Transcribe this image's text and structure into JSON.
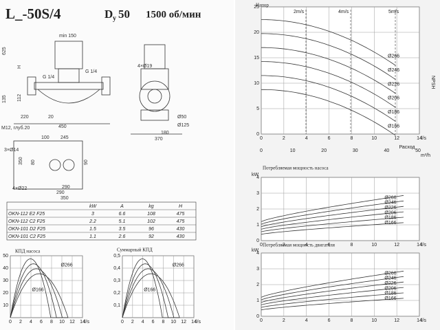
{
  "header": {
    "model": "L_-50S/4",
    "dn_letter": "D",
    "dn_sub": "у",
    "dn": "50",
    "speed": "1500 об/мин"
  },
  "drawing": {
    "labels": [
      "625",
      "H",
      "min 150",
      "G 1/4",
      "G 1/4",
      "135",
      "112",
      "220",
      "20",
      "450",
      "M12, глуб.20",
      "4×Ø19",
      "Ø50",
      "Ø125",
      "180",
      "370",
      "100",
      "245",
      "3×Ø14",
      "350",
      "290",
      "4×Ø22",
      "290",
      "350",
      "90",
      "80"
    ]
  },
  "table": {
    "header": [
      "",
      "kW",
      "A",
      "kg",
      "H"
    ],
    "rows": [
      [
        "OKN-112 E2 F25",
        "3",
        "6.6",
        "108",
        "475"
      ],
      [
        "OKN-112 C2 F25",
        "2.2",
        "5.1",
        "102",
        "475"
      ],
      [
        "OKN-101 D2 F25",
        "1.5",
        "3.5",
        "96",
        "430"
      ],
      [
        "OKN-101 C2 F25",
        "1.1",
        "2.6",
        "92",
        "430"
      ]
    ]
  },
  "pump_eff": {
    "title": "КПД насоса",
    "yticks": [
      10,
      20,
      30,
      40,
      50
    ],
    "xticks": [
      0,
      2,
      4,
      6,
      8,
      10,
      12,
      14
    ],
    "x_unit": "l/s",
    "curve_labels": [
      "Ø266",
      "Ø166"
    ]
  },
  "total_eff": {
    "title": "Суммарный КПД",
    "yticks": [
      {
        "value": 0.1,
        "label": "0,1"
      },
      {
        "value": 0.2,
        "label": "0,2"
      },
      {
        "value": 0.3,
        "label": "0,3"
      },
      {
        "value": 0.4,
        "label": "0,4"
      },
      {
        "value": 0.5,
        "label": "0,5"
      }
    ],
    "xticks": [
      0,
      2,
      4,
      6,
      8,
      10,
      12,
      14
    ],
    "x_unit": "l/s",
    "curve_labels": [
      "Ø266",
      "Ø166"
    ]
  },
  "head": {
    "title": "Напор",
    "xlabel": "Расход",
    "yticks": [
      0,
      5,
      10,
      15,
      20,
      25
    ],
    "xticks": [
      0,
      2,
      4,
      6,
      8,
      10,
      12,
      14
    ],
    "x_unit": "l/s",
    "xticks2": [
      0,
      10,
      20,
      30,
      40,
      50
    ],
    "x2_unit": "m³/h",
    "speeds": [
      "2m/s",
      "4m/s",
      "5m/s"
    ],
    "npsh": "NPSH",
    "curve_labels": [
      "Ø266",
      "Ø246",
      "Ø226",
      "Ø206",
      "Ø186",
      "Ø166"
    ]
  },
  "pump_power": {
    "title": "Потребляемая мощность насоса",
    "y_unit": "kW",
    "yticks": [
      0,
      1,
      2,
      3,
      4
    ],
    "xticks": [
      0,
      2,
      4,
      6,
      8,
      10,
      12,
      14
    ],
    "x_unit": "l/s",
    "curve_labels": [
      "Ø266",
      "Ø246",
      "Ø226",
      "Ø206",
      "Ø186",
      "Ø166"
    ]
  },
  "motor_power": {
    "title": "Потребляемая мощность двигателя",
    "y_unit": "kW",
    "yticks": [
      0,
      1,
      2,
      3,
      4
    ],
    "xticks": [
      0,
      2,
      4,
      6,
      8,
      10,
      12,
      14
    ],
    "x_unit": "l/s",
    "curve_labels": [
      "Ø266",
      "Ø246",
      "Ø226",
      "Ø206",
      "Ø186",
      "Ø166"
    ]
  }
}
